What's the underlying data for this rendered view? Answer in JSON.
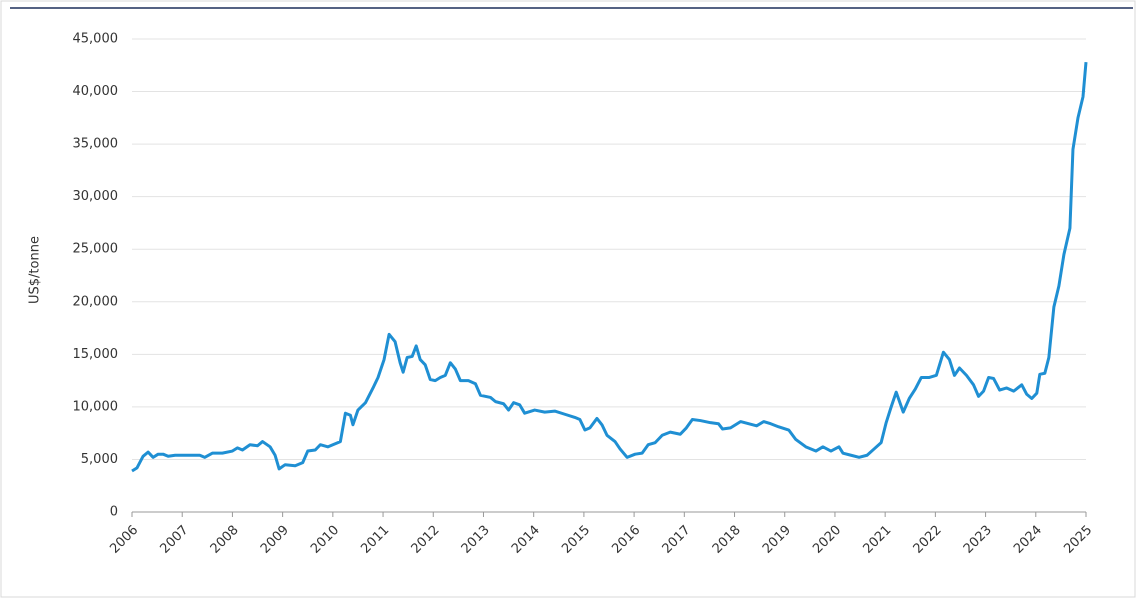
{
  "chart_data": {
    "type": "line",
    "y_label": "US$/tonne",
    "x": [
      2006.0,
      2006.1,
      2006.22,
      2006.32,
      2006.42,
      2006.52,
      2006.62,
      2006.72,
      2006.86,
      2007.16,
      2007.35,
      2007.45,
      2007.6,
      2007.8,
      2008.0,
      2008.1,
      2008.2,
      2008.35,
      2008.5,
      2008.6,
      2008.75,
      2008.85,
      2008.93,
      2009.05,
      2009.25,
      2009.4,
      2009.5,
      2009.65,
      2009.75,
      2009.9,
      2010.0,
      2010.15,
      2010.25,
      2010.35,
      2010.4,
      2010.5,
      2010.65,
      2010.8,
      2010.9,
      2011.02,
      2011.12,
      2011.24,
      2011.34,
      2011.4,
      2011.48,
      2011.58,
      2011.66,
      2011.74,
      2011.84,
      2011.94,
      2012.04,
      2012.14,
      2012.24,
      2012.34,
      2012.44,
      2012.54,
      2012.7,
      2012.84,
      2012.94,
      2013.14,
      2013.24,
      2013.4,
      2013.5,
      2013.6,
      2013.72,
      2013.82,
      2014.02,
      2014.22,
      2014.42,
      2014.62,
      2014.82,
      2014.92,
      2015.02,
      2015.12,
      2015.26,
      2015.36,
      2015.46,
      2015.62,
      2015.72,
      2015.86,
      2016.02,
      2016.16,
      2016.28,
      2016.42,
      2016.56,
      2016.72,
      2016.92,
      2017.04,
      2017.16,
      2017.32,
      2017.52,
      2017.68,
      2017.76,
      2017.92,
      2018.12,
      2018.28,
      2018.44,
      2018.58,
      2018.72,
      2018.88,
      2019.08,
      2019.22,
      2019.42,
      2019.62,
      2019.76,
      2019.92,
      2020.08,
      2020.16,
      2020.32,
      2020.48,
      2020.64,
      2020.78,
      2020.92,
      2021.02,
      2021.12,
      2021.22,
      2021.36,
      2021.48,
      2021.6,
      2021.72,
      2021.88,
      2022.02,
      2022.16,
      2022.28,
      2022.38,
      2022.48,
      2022.62,
      2022.76,
      2022.86,
      2022.96,
      2023.06,
      2023.16,
      2023.28,
      2023.42,
      2023.56,
      2023.72,
      2023.82,
      2023.92,
      2024.02,
      2024.08,
      2024.18,
      2024.26,
      2024.36,
      2024.46,
      2024.56,
      2024.68,
      2024.74,
      2024.84,
      2024.94,
      2025.0
    ],
    "series": [
      {
        "color": "#1f8fd3",
        "values": [
          3900,
          4200,
          5300,
          5700,
          5200,
          5500,
          5500,
          5300,
          5400,
          5400,
          5400,
          5200,
          5600,
          5600,
          5800,
          6100,
          5900,
          6400,
          6300,
          6700,
          6200,
          5400,
          4100,
          4500,
          4400,
          4700,
          5800,
          5900,
          6400,
          6200,
          6400,
          6700,
          9400,
          9200,
          8300,
          9700,
          10400,
          11800,
          12800,
          14500,
          16900,
          16200,
          14200,
          13300,
          14700,
          14800,
          15800,
          14500,
          14000,
          12600,
          12500,
          12800,
          13000,
          14200,
          13600,
          12500,
          12500,
          12200,
          11100,
          10900,
          10500,
          10300,
          9700,
          10400,
          10200,
          9400,
          9700,
          9500,
          9600,
          9300,
          9000,
          8800,
          7800,
          8000,
          8900,
          8300,
          7300,
          6700,
          6000,
          5200,
          5500,
          5600,
          6400,
          6600,
          7300,
          7600,
          7400,
          8000,
          8800,
          8700,
          8500,
          8400,
          7900,
          8000,
          8600,
          8400,
          8200,
          8600,
          8400,
          8100,
          7800,
          6900,
          6200,
          5800,
          6200,
          5800,
          6200,
          5600,
          5400,
          5200,
          5400,
          6000,
          6600,
          8500,
          10000,
          11400,
          9500,
          10800,
          11700,
          12800,
          12800,
          13000,
          15200,
          14500,
          13000,
          13700,
          13000,
          12100,
          11000,
          11500,
          12800,
          12700,
          11600,
          11800,
          11500,
          12100,
          11200,
          10800,
          11300,
          13100,
          13200,
          14700,
          19500,
          21500,
          24500,
          27000,
          34500,
          37500,
          39500,
          42800
        ]
      }
    ],
    "xlim": [
      2006,
      2025
    ],
    "xticks": [
      2006,
      2007,
      2008,
      2009,
      2010,
      2011,
      2012,
      2013,
      2014,
      2015,
      2016,
      2017,
      2018,
      2019,
      2020,
      2021,
      2022,
      2023,
      2024,
      2025
    ],
    "ylim": [
      0,
      45000
    ],
    "yticks": [
      0,
      {
        "value": 5000,
        "label": "5,000"
      },
      {
        "value": 10000,
        "label": "10,000"
      },
      {
        "value": 15000,
        "label": "15,000"
      },
      {
        "value": 20000,
        "label": "20,000"
      },
      {
        "value": 25000,
        "label": "25,000"
      },
      {
        "value": 30000,
        "label": "30,000"
      },
      {
        "value": 35000,
        "label": "35,000"
      },
      {
        "value": 40000,
        "label": "40,000"
      },
      {
        "value": 45000,
        "label": "45,000"
      }
    ],
    "grid": true
  }
}
